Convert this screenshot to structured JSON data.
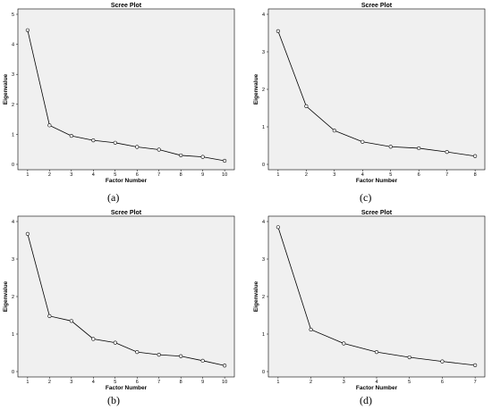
{
  "chart_data": [
    {
      "id": "a",
      "type": "line",
      "title": "Scree Plot",
      "xlabel": "Factor Number",
      "ylabel": "Eigenvalue",
      "x": [
        1,
        2,
        3,
        4,
        5,
        6,
        7,
        8,
        9,
        10
      ],
      "values": [
        4.47,
        1.3,
        0.95,
        0.8,
        0.72,
        0.58,
        0.49,
        0.3,
        0.25,
        0.12
      ],
      "xlim": [
        1,
        10
      ],
      "ylim": [
        0,
        5
      ],
      "yticks": [
        0,
        1,
        2,
        3,
        4,
        5
      ],
      "caption": "(a)"
    },
    {
      "id": "c",
      "type": "line",
      "title": "Scree Plot",
      "xlabel": "Factor Number",
      "ylabel": "Eigenvalue",
      "x": [
        1,
        2,
        3,
        4,
        5,
        6,
        7,
        8
      ],
      "values": [
        3.55,
        1.55,
        0.9,
        0.6,
        0.47,
        0.43,
        0.33,
        0.22
      ],
      "xlim": [
        1,
        8
      ],
      "ylim": [
        0,
        4
      ],
      "yticks": [
        0,
        1,
        2,
        3,
        4
      ],
      "caption": "(c)"
    },
    {
      "id": "b",
      "type": "line",
      "title": "Scree Plot",
      "xlabel": "Factor Number",
      "ylabel": "Eigenvalue",
      "x": [
        1,
        2,
        3,
        4,
        5,
        6,
        7,
        8,
        9,
        10
      ],
      "values": [
        3.67,
        1.48,
        1.35,
        0.87,
        0.77,
        0.52,
        0.45,
        0.41,
        0.29,
        0.16
      ],
      "xlim": [
        1,
        10
      ],
      "ylim": [
        0,
        4
      ],
      "yticks": [
        0,
        1,
        2,
        3,
        4
      ],
      "caption": "(b)"
    },
    {
      "id": "d",
      "type": "line",
      "title": "Scree Plot",
      "xlabel": "Factor Number",
      "ylabel": "Eigenvalue",
      "x": [
        1,
        2,
        3,
        4,
        5,
        6,
        7
      ],
      "values": [
        3.85,
        1.12,
        0.75,
        0.52,
        0.38,
        0.27,
        0.17
      ],
      "xlim": [
        1,
        7
      ],
      "ylim": [
        0,
        4
      ],
      "yticks": [
        0,
        1,
        2,
        3,
        4
      ],
      "caption": "(d)"
    }
  ]
}
